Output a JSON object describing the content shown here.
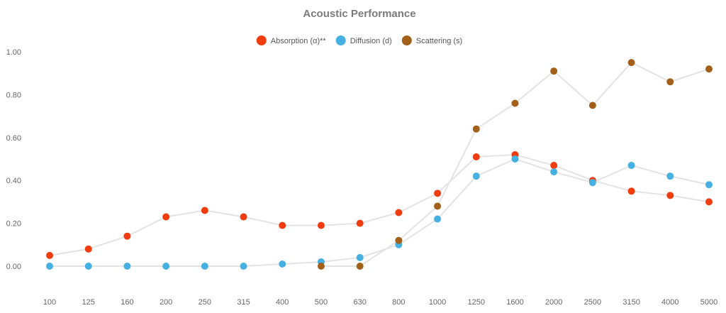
{
  "chart_data": {
    "type": "line",
    "title": "Acoustic Performance",
    "xlabel": "",
    "ylabel": "",
    "x": [
      "100",
      "125",
      "160",
      "200",
      "250",
      "315",
      "400",
      "500",
      "630",
      "800",
      "1000",
      "1250",
      "1600",
      "2000",
      "2500",
      "3150",
      "4000",
      "5000"
    ],
    "ylim": [
      -0.1,
      1.1
    ],
    "yticks": [
      "0.00",
      "0.20",
      "0.40",
      "0.60",
      "0.80",
      "1.00"
    ],
    "grid": false,
    "legend_position": "top-center",
    "line_color": "#e3e3e3",
    "series": [
      {
        "name": "Absorption (α)**",
        "color": "#f03c0f",
        "values": [
          0.05,
          0.08,
          0.14,
          0.23,
          0.26,
          0.23,
          0.19,
          0.19,
          0.2,
          0.25,
          0.34,
          0.51,
          0.52,
          0.47,
          0.4,
          0.35,
          0.33,
          0.3
        ]
      },
      {
        "name": "Diffusion (d)",
        "color": "#45b0e1",
        "values": [
          0.0,
          0.0,
          0.0,
          0.0,
          0.0,
          0.0,
          0.01,
          0.02,
          0.04,
          0.1,
          0.22,
          0.42,
          0.5,
          0.44,
          0.39,
          0.47,
          0.42,
          0.38
        ]
      },
      {
        "name": "Scattering (s)",
        "color": "#a2601a",
        "values": [
          null,
          null,
          null,
          null,
          null,
          null,
          null,
          0.0,
          0.0,
          0.12,
          0.28,
          0.64,
          0.76,
          0.91,
          0.75,
          0.95,
          0.86,
          0.92
        ]
      }
    ]
  }
}
